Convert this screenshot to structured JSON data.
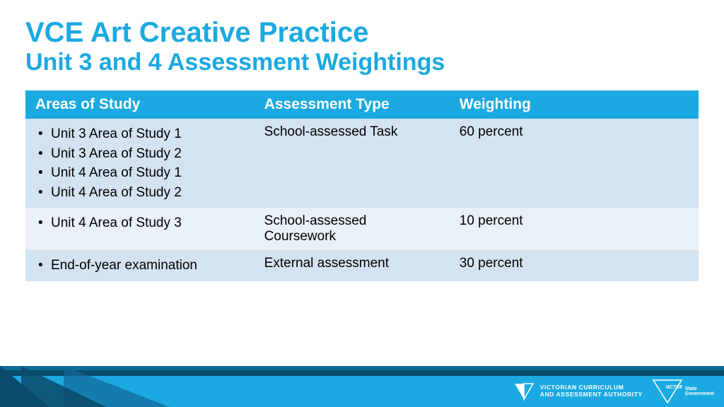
{
  "title": {
    "line1": "VCE Art Creative Practice",
    "line2": "Unit 3 and 4 Assessment Weightings",
    "color": "#1ba9e1",
    "line1_fontsize": 40,
    "line2_fontsize": 34
  },
  "table": {
    "header_bg": "#1ba9e1",
    "header_fg": "#ffffff",
    "row_bg_odd": "#d4e3f1",
    "row_bg_even": "#e9f0f8",
    "body_fontsize": 19,
    "header_fontsize": 21,
    "col_widths": [
      "34%",
      "29%",
      "37%"
    ],
    "columns": [
      "Areas of Study",
      "Assessment Type",
      "Weighting"
    ],
    "rows": [
      {
        "areas": [
          "Unit 3 Area of Study 1",
          "Unit 3 Area of Study 2",
          "Unit 4 Area of Study 1",
          "Unit 4 Area of Study 2"
        ],
        "type": "School-assessed Task",
        "weight": "60 percent"
      },
      {
        "areas": [
          "Unit 4 Area of Study 3"
        ],
        "type": "School-assessed Coursework",
        "weight": "10 percent"
      },
      {
        "areas": [
          "End-of-year examination"
        ],
        "type": "External assessment",
        "weight": "30 percent"
      }
    ]
  },
  "footer": {
    "vcaa_line1": "VICTORIAN CURRICULUM",
    "vcaa_line2": "AND ASSESSMENT AUTHORITY",
    "vic_label": "ICTORIA",
    "vic_state1": "State",
    "vic_state2": "Government",
    "strip_color": "#1ba9e1",
    "dark_color": "#0a4a6a",
    "mid_color": "#0f6a96"
  }
}
